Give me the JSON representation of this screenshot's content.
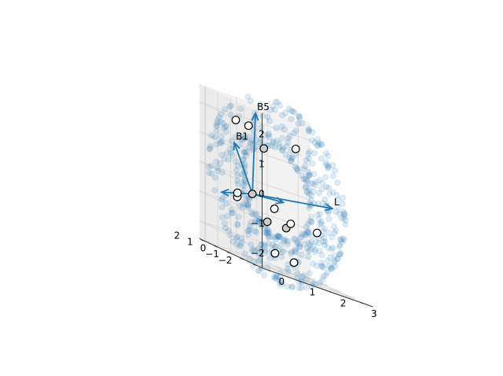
{
  "chart_data": {
    "type": "scatter",
    "projection": "3d",
    "axes": {
      "x": {
        "ticks": [
          0,
          1,
          2,
          3
        ],
        "tick_labels": [
          "0",
          "1",
          "2",
          "3"
        ],
        "range": [
          -0.2,
          3.4
        ]
      },
      "y": {
        "ticks": [
          -2,
          -1,
          0,
          1,
          2
        ],
        "tick_labels": [
          "−2",
          "−1",
          "0",
          "1",
          "2"
        ],
        "range": [
          -2.4,
          2.4
        ]
      },
      "z": {
        "ticks": [
          -2,
          -1,
          0,
          1,
          2
        ],
        "tick_labels": [
          "−2",
          "−1",
          "0",
          "1",
          "2"
        ],
        "range": [
          -2.6,
          2.6
        ]
      },
      "grid": true,
      "panes": "light-gray"
    },
    "background_cloud": {
      "color": "#1f77b4",
      "alpha": 0.15,
      "description_free": true,
      "shape": "torus"
    },
    "reference_points": {
      "edge_color": "#000000",
      "points": [
        {
          "x": 0.3,
          "y": 0.8,
          "z": 1.9,
          "fill": "#ffffff"
        },
        {
          "x": 0.8,
          "y": 1.0,
          "z": 1.85,
          "fill": "#ffffff"
        },
        {
          "x": 1.0,
          "y": 0.3,
          "z": 1.3,
          "fill": "#cccccc"
        },
        {
          "x": 2.5,
          "y": 1.4,
          "z": 1.6,
          "fill": "#ffffff"
        },
        {
          "x": -0.2,
          "y": -0.5,
          "z": -0.6,
          "fill": "#ffffff"
        },
        {
          "x": 0.1,
          "y": 0.2,
          "z": -0.5,
          "fill": "#ffffff"
        },
        {
          "x": 0.5,
          "y": 0.0,
          "z": -0.35,
          "fill": "#cccccc"
        },
        {
          "x": 1.3,
          "y": 0.2,
          "z": -0.6,
          "fill": "#ffffff"
        },
        {
          "x": 0.9,
          "y": -0.2,
          "z": -1.1,
          "fill": "#cccccc"
        },
        {
          "x": 1.6,
          "y": 0.0,
          "z": -1.1,
          "fill": "#cccccc"
        },
        {
          "x": 1.7,
          "y": -0.1,
          "z": -0.9,
          "fill": "#ffffff"
        },
        {
          "x": 2.6,
          "y": 0.0,
          "z": -0.9,
          "fill": "#ffffff"
        },
        {
          "x": 0.6,
          "y": -1.5,
          "z": -2.0,
          "fill": "#ffffff"
        },
        {
          "x": 1.3,
          "y": -1.3,
          "z": -2.1,
          "fill": "#ffffff"
        }
      ]
    },
    "vectors": {
      "color": "#1f77b4",
      "origin": {
        "x": 0.5,
        "y": 0.0,
        "z": -0.35
      },
      "items": [
        {
          "label": "B5",
          "dx": 0.1,
          "dy": 0.0,
          "dz": 2.75
        },
        {
          "label": "B1",
          "dx": -0.5,
          "dy": 0.2,
          "dz": 1.5
        },
        {
          "label": "L",
          "dx": 2.6,
          "dy": 0.0,
          "dz": 0.45
        },
        {
          "label": "",
          "dx": 1.0,
          "dy": 0.0,
          "dz": 0.08
        },
        {
          "label": "",
          "dx": -1.0,
          "dy": 0.0,
          "dz": -0.3
        }
      ]
    }
  }
}
